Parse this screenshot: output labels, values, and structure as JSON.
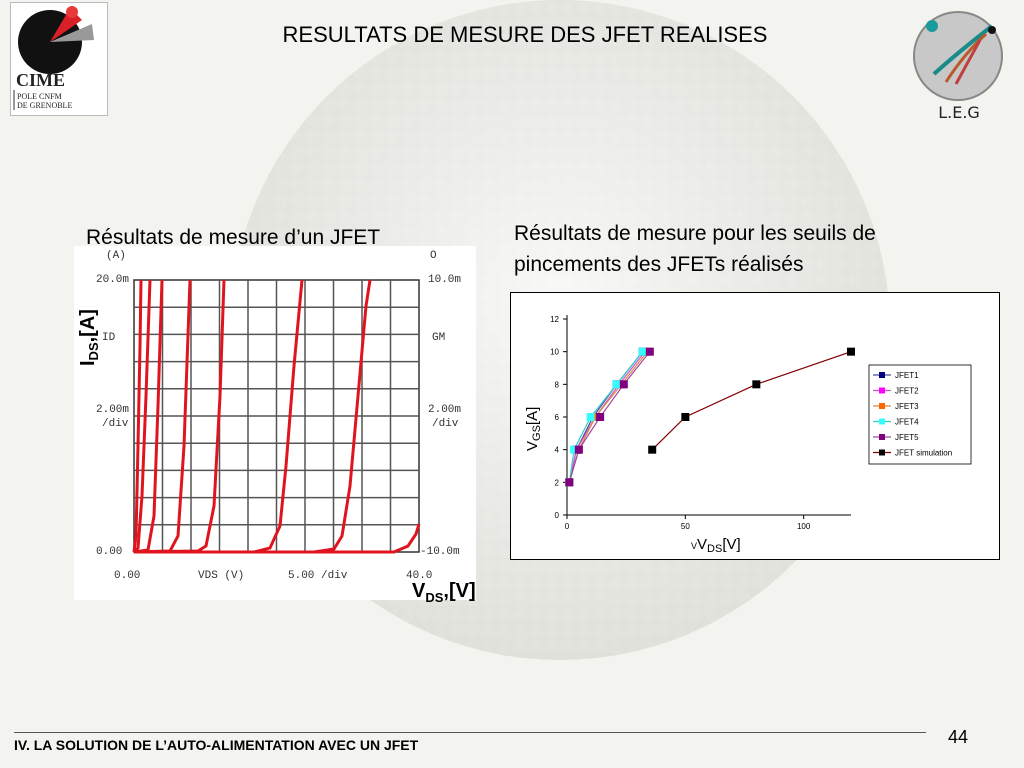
{
  "slide": {
    "title": "RESULTATS DE MESURE DES JFET REALISES",
    "left_caption": "Résultats de mesure d’un JFET",
    "right_caption_line1": "Résultats de mesure pour les seuils de",
    "right_caption_line2": "pincements des JFETs réalisés",
    "footer": "IV. LA SOLUTION DE L’AUTO-ALIMENTATION AVEC UN JFET",
    "page_number": "44"
  },
  "logos": {
    "cime_text": "CIME",
    "cime_sub1": "POLE CNFM",
    "cime_sub2": "DE GRENOBLE",
    "leg_text": "L.E.G"
  },
  "colors": {
    "curve_red": "#e0141e",
    "grid_dark": "#444444",
    "background": "#f3f3ef"
  },
  "oscilloscope": {
    "ids_axis_label": "I",
    "ids_sub": "DS",
    "ids_unit": "[A]",
    "vds_axis_label": "V",
    "vds_sub": "DS",
    "vds_unit": "[V]",
    "top_left_unit": "(A)",
    "top_right_unit": "O",
    "ymax_left": "20.0m",
    "ymax_right": "10.0m",
    "y_label_left": "ID",
    "y_label_right": "GM",
    "div_left_1": "2.00m",
    "div_left_2": "/div",
    "div_right_1": "2.00m",
    "div_right_2": "/div",
    "ymin_left": "0.00",
    "ymin_right": "-10.0m",
    "x_min": "0.00",
    "x_name": "VDS (V)",
    "x_div": "5.00 /div",
    "x_max": "40.0"
  },
  "chart_data": {
    "type": "line",
    "xlabel_prefix": "V",
    "xlabel_sub": "DS",
    "xlabel_unit": "[V]",
    "xlabel_stray": "V",
    "ylabel_prefix": "V",
    "ylabel_sub": "GS",
    "ylabel_unit": "[A]",
    "xlim": [
      0,
      120
    ],
    "ylim": [
      0,
      12
    ],
    "xticks": [
      "0",
      "50",
      "100"
    ],
    "yticks": [
      "0",
      "2",
      "4",
      "6",
      "8",
      "10",
      "12"
    ],
    "legend_position": "right",
    "series": [
      {
        "name": "JFET1",
        "color": "#000080",
        "line": "#4a4a9a",
        "x": [
          1,
          4,
          11,
          21,
          32
        ],
        "y": [
          2,
          4,
          6,
          8,
          10
        ]
      },
      {
        "name": "JFET2",
        "color": "#ff00ff",
        "line": "#cc55cc",
        "x": [
          1,
          4,
          12,
          22,
          33
        ],
        "y": [
          2,
          4,
          6,
          8,
          10
        ]
      },
      {
        "name": "JFET3",
        "color": "#ff6600",
        "line": "#dd8844",
        "x": [
          1,
          5,
          12,
          23,
          34
        ],
        "y": [
          2,
          4,
          6,
          8,
          10
        ]
      },
      {
        "name": "JFET4",
        "color": "#33ffff",
        "line": "#33cccc",
        "x": [
          1,
          3,
          10,
          21,
          32
        ],
        "y": [
          2,
          4,
          6,
          8,
          10
        ]
      },
      {
        "name": "JFET5",
        "color": "#800080",
        "line": "#a04aa0",
        "x": [
          1,
          5,
          14,
          24,
          35
        ],
        "y": [
          2,
          4,
          6,
          8,
          10
        ]
      },
      {
        "name": "JFET simulation",
        "color": "#000000",
        "line": "#800000",
        "x": [
          36,
          50,
          80,
          120
        ],
        "y": [
          4,
          6,
          8,
          10
        ]
      }
    ]
  }
}
